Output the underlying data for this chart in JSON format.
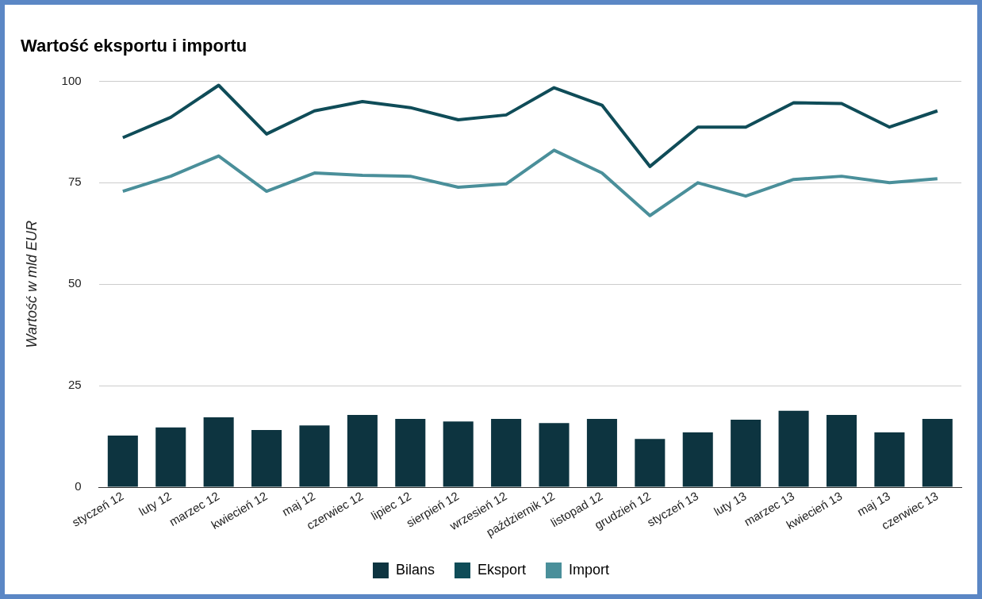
{
  "chart_data": {
    "type": "bar",
    "title": "Wartość eksportu i importu",
    "ylabel": "Wartość w mld EUR",
    "categories": [
      "styczeń 12",
      "luty 12",
      "marzec 12",
      "kwiecień 12",
      "maj 12",
      "czerwiec 12",
      "lipiec 12",
      "sierpień 12",
      "wrzesień 12",
      "październik 12",
      "listopad 12",
      "grudzień 12",
      "styczeń 13",
      "luty 13",
      "marzec 13",
      "kwiecień 13",
      "maj 13",
      "czerwiec 13"
    ],
    "series": [
      {
        "name": "Bilans",
        "color": "#0d3440",
        "values": [
          12.7,
          14.7,
          17.2,
          14.1,
          15.2,
          17.8,
          16.8,
          16.2,
          16.8,
          15.8,
          16.8,
          11.9,
          13.5,
          16.6,
          18.8,
          17.8,
          13.5,
          16.8
        ]
      },
      {
        "name": "Eksport",
        "type": "line",
        "color": "#0f4c58",
        "values": [
          86.1,
          91.1,
          99,
          87,
          92.7,
          95,
          93.5,
          90.5,
          91.7,
          98.4,
          94.1,
          79,
          88.7,
          88.7,
          94.7,
          94.5,
          88.7,
          92.7
        ]
      },
      {
        "name": "Import",
        "type": "line",
        "color": "#4a8f9a",
        "values": [
          72.9,
          76.6,
          81.6,
          72.9,
          77.4,
          76.8,
          76.6,
          73.9,
          74.7,
          83,
          77.4,
          66.9,
          75,
          71.7,
          75.8,
          76.6,
          75,
          76
        ]
      }
    ],
    "ylim": [
      0,
      100
    ],
    "yticks": [
      0,
      25,
      50,
      75,
      100
    ],
    "grid": "y",
    "legend": "bottom",
    "marker": "none",
    "line_style": "solid"
  }
}
